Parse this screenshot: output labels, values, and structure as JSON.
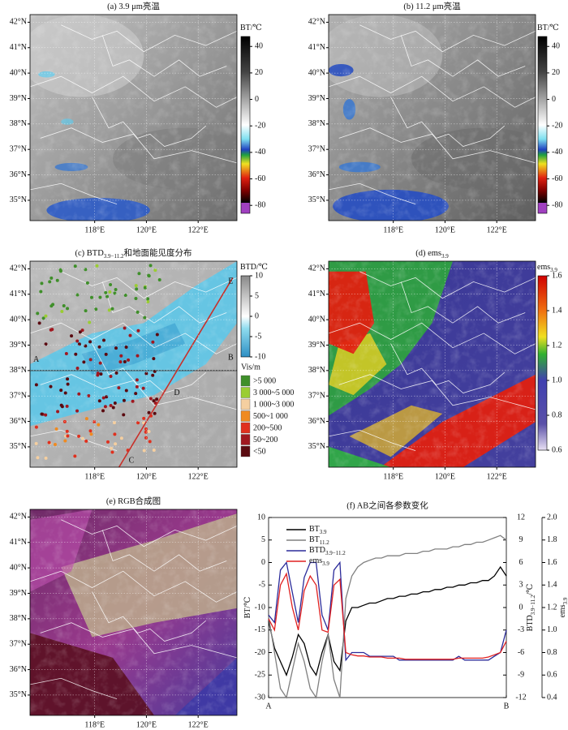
{
  "latlim": [
    34.2,
    42.3
  ],
  "lonlim": [
    115.5,
    123.5
  ],
  "lat_ticks": [
    {
      "value": 42,
      "label": "42°N"
    },
    {
      "value": 41,
      "label": "41°N"
    },
    {
      "value": 40,
      "label": "40°N"
    },
    {
      "value": 39,
      "label": "39°N"
    },
    {
      "value": 38,
      "label": "38°N"
    },
    {
      "value": 37,
      "label": "37°N"
    },
    {
      "value": 36,
      "label": "36°N"
    },
    {
      "value": 35,
      "label": "35°N"
    }
  ],
  "lon_ticks": [
    {
      "value": 118,
      "label": "118°E"
    },
    {
      "value": 120,
      "label": "120°E"
    },
    {
      "value": 122,
      "label": "122°E"
    }
  ],
  "maps": [
    {
      "title": "(a) 3.9 μm亮温",
      "colorbar": {
        "label": "BT/℃",
        "lim": [
          -86,
          47.5
        ],
        "ticks": [
          40,
          20,
          0,
          -20,
          -40,
          -60,
          -80
        ]
      }
    },
    {
      "title": "(b) 11.2 μm亮温",
      "colorbar": {
        "label": "BT/℃",
        "lim": [
          -86,
          47.5
        ],
        "ticks": [
          40,
          20,
          0,
          -20,
          -40,
          -60,
          -80
        ]
      }
    },
    {
      "title": "(c) BTD",
      "title_sub": "3.9−11.2",
      "title_suffix": "和地面能见度分布",
      "colorbar": {
        "label": "BTD/℃",
        "lim": [
          -10,
          10
        ],
        "ticks": [
          10,
          5,
          0,
          -5,
          -10
        ]
      },
      "section_labels": [
        "A",
        "B",
        "C",
        "D",
        "E"
      ],
      "vis_legend": {
        "title": "Vis/m",
        "items": [
          {
            "label": ">5 000",
            "color": "#3f8f2a"
          },
          {
            "label": "3 000~5 000",
            "color": "#9acd32"
          },
          {
            "label": "1 000~3 000",
            "color": "#f5cfa0"
          },
          {
            "label": "500~1 000",
            "color": "#f08a20"
          },
          {
            "label": "200~500",
            "color": "#e0301e"
          },
          {
            "label": "50~200",
            "color": "#a01820"
          },
          {
            "label": "<50",
            "color": "#5a0a10"
          }
        ]
      }
    },
    {
      "title": "(d) ems",
      "title_sub": "3.9",
      "colorbar": {
        "label": "ems",
        "label_sub": "3.9",
        "lim": [
          0.6,
          1.6
        ],
        "ticks": [
          1.6,
          1.4,
          1.2,
          {
            "value": 1,
            "label": "1.0"
          },
          0.8,
          0.6
        ]
      }
    },
    {
      "title": "(e) RGB合成图"
    }
  ],
  "chart_data": {
    "type": "line",
    "title": "(f) AB之间各参数变化",
    "ylabel": "BT/℃",
    "y2label": "BTD",
    "y2label_sub": "3.9−11.2",
    "y2label_suffix": "/℃",
    "y3label": "ems",
    "y3label_sub": "3.9",
    "x": [
      0,
      1,
      2,
      3,
      4,
      5,
      6,
      7,
      8,
      9,
      10,
      11,
      12,
      13,
      14,
      15,
      16,
      17,
      18,
      19,
      20,
      21,
      22,
      23,
      24,
      25,
      26,
      27,
      28,
      29,
      30,
      31,
      32,
      33,
      34,
      35,
      36,
      37,
      38,
      39,
      40
    ],
    "xlim": [
      0,
      40
    ],
    "xticks": [
      {
        "value": 0,
        "label": "A"
      },
      {
        "value": 40,
        "label": "B"
      }
    ],
    "ylim": [
      -30,
      10
    ],
    "yticks": [
      -30,
      -25,
      -20,
      -15,
      -10,
      -5,
      0,
      5,
      10
    ],
    "y2lim": [
      -12,
      12
    ],
    "y2ticks": [
      -12,
      -9,
      -6,
      -3,
      0,
      3,
      6,
      9,
      12
    ],
    "y3lim": [
      0.4,
      2.0
    ],
    "y3ticks": [
      0.4,
      0.6,
      0.8,
      {
        "value": 1,
        "label": "1.0"
      },
      1.2,
      1.4,
      1.6,
      1.8,
      {
        "value": 2,
        "label": "2.0"
      }
    ],
    "series": [
      {
        "name": "BT",
        "name_sub": "3.9",
        "color": "#000000",
        "axis": "y",
        "values": [
          -13,
          -19,
          -22,
          -25,
          -21,
          -16,
          -18,
          -23,
          -25,
          -20,
          -16,
          -22,
          -24,
          -13,
          -10,
          -10,
          -9.5,
          -9,
          -9,
          -8.5,
          -8,
          -8,
          -7.5,
          -7.5,
          -7,
          -7,
          -6.5,
          -6.5,
          -6,
          -6,
          -5.5,
          -5.5,
          -5,
          -5,
          -4.5,
          -4.5,
          -4,
          -4,
          -3,
          -1,
          -3
        ]
      },
      {
        "name": "BT",
        "name_sub": "11.2",
        "color": "#808080",
        "axis": "y",
        "values": [
          -12,
          -20,
          -28,
          -30,
          -24,
          -18,
          -22,
          -28,
          -30,
          -22,
          -16,
          -26,
          -30,
          -8,
          -3,
          -1,
          0,
          0.5,
          1,
          1,
          1.5,
          1.5,
          1.5,
          2,
          2,
          2,
          2.5,
          2.5,
          3,
          3,
          3,
          3.5,
          3.5,
          4,
          4,
          4.5,
          4.5,
          5,
          5.5,
          6,
          5
        ]
      },
      {
        "name": "BTD",
        "name_sub": "3.9−11.2",
        "color": "#2b2b9a",
        "axis": "y2",
        "values": [
          -1,
          -2,
          5,
          6,
          2,
          -2,
          4,
          6,
          6,
          -1,
          -3,
          5,
          6,
          -7,
          -6,
          -6,
          -6,
          -6.5,
          -6.5,
          -6.5,
          -6.5,
          -6.5,
          -7,
          -7,
          -7,
          -7,
          -7,
          -7,
          -7,
          -7,
          -7,
          -7,
          -6.5,
          -7,
          -7,
          -7,
          -7,
          -7,
          -6.5,
          -6,
          -3
        ]
      },
      {
        "name": "ems",
        "name_sub": "3.9",
        "color": "#e02020",
        "axis": "y3",
        "values": [
          1.1,
          1.0,
          1.4,
          1.5,
          1.2,
          1.0,
          1.35,
          1.48,
          1.4,
          1.0,
          0.98,
          1.4,
          1.45,
          0.8,
          0.78,
          0.77,
          0.77,
          0.76,
          0.76,
          0.76,
          0.75,
          0.75,
          0.75,
          0.74,
          0.74,
          0.74,
          0.74,
          0.74,
          0.74,
          0.74,
          0.74,
          0.74,
          0.75,
          0.75,
          0.75,
          0.75,
          0.75,
          0.76,
          0.78,
          0.8,
          0.9
        ]
      }
    ]
  }
}
